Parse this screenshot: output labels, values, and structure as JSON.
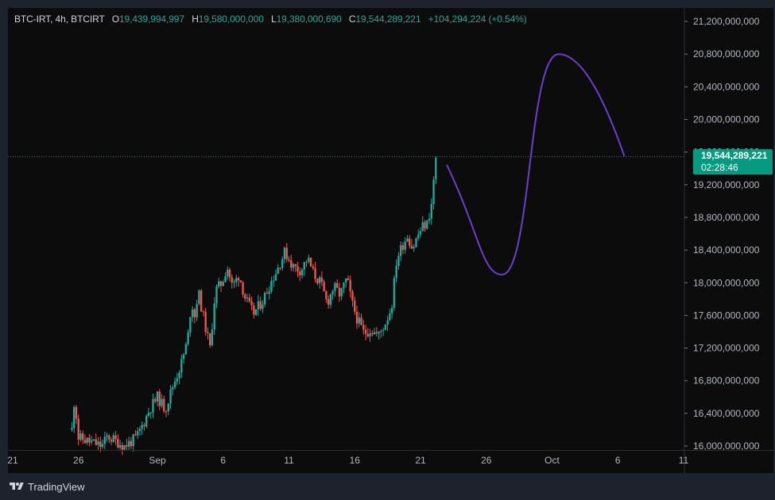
{
  "legend": {
    "symbol": "BTC-IRT, 4h, BTCIRT",
    "o_label": "O",
    "o_value": "19,439,994,997",
    "h_label": "H",
    "h_value": "19,580,000,000",
    "l_label": "L",
    "l_value": "19,380,000,690",
    "c_label": "C",
    "c_value": "19,544,289,221",
    "change": "+104,294,224 (+0.54%)"
  },
  "price_tag": {
    "price": "19,544,289,221",
    "countdown": "02:28:46"
  },
  "footer": {
    "brand": "TradingView"
  },
  "colors": {
    "up": "#26a69a",
    "down": "#ef5350",
    "projection": "#6a3fc9",
    "price_line": "#089981"
  },
  "chart_data": {
    "type": "candlestick",
    "y_ticks": [
      "21,200,000,000",
      "20,800,000,000",
      "20,400,000,000",
      "20,000,000,000",
      "19,600,000,000",
      "19,200,000,000",
      "18,800,000,000",
      "18,400,000,000",
      "18,000,000,000",
      "17,600,000,000",
      "17,200,000,000",
      "16,800,000,000",
      "16,400,000,000",
      "16,000,000,000"
    ],
    "y_tick_values": [
      21200000000.0,
      20800000000.0,
      20400000000.0,
      20000000000.0,
      19600000000.0,
      19200000000.0,
      18800000000.0,
      18400000000.0,
      18000000000.0,
      17600000000.0,
      17200000000.0,
      16800000000.0,
      16400000000.0,
      16000000000.0
    ],
    "x_ticks": [
      {
        "label": "21",
        "day": -11
      },
      {
        "label": "26",
        "day": -6
      },
      {
        "label": "Sep",
        "day": 0
      },
      {
        "label": "6",
        "day": 5
      },
      {
        "label": "11",
        "day": 10
      },
      {
        "label": "16",
        "day": 15
      },
      {
        "label": "21",
        "day": 20
      },
      {
        "label": "26",
        "day": 25
      },
      {
        "label": "Oct",
        "day": 30
      },
      {
        "label": "6",
        "day": 35
      },
      {
        "label": "11",
        "day": 40
      }
    ],
    "last_price": 19544289221,
    "close_path_m": [
      [
        -6.5,
        16.2
      ],
      [
        -6.3,
        16.6
      ],
      [
        -6.0,
        16.1
      ],
      [
        -4.2,
        16.0
      ],
      [
        -3.8,
        16.12
      ],
      [
        -2.5,
        16.0
      ],
      [
        -1.6,
        16.1
      ],
      [
        -1.0,
        16.3
      ],
      [
        -0.6,
        16.45
      ],
      [
        0.0,
        16.6
      ],
      [
        0.6,
        16.45
      ],
      [
        1.2,
        16.75
      ],
      [
        1.8,
        17.0
      ],
      [
        2.3,
        17.3
      ],
      [
        2.6,
        17.8
      ],
      [
        2.8,
        17.55
      ],
      [
        3.1,
        17.9
      ],
      [
        3.6,
        17.5
      ],
      [
        4.0,
        17.2
      ],
      [
        4.4,
        17.9
      ],
      [
        4.9,
        18.0
      ],
      [
        5.3,
        18.2
      ],
      [
        5.7,
        17.95
      ],
      [
        6.2,
        18.1
      ],
      [
        6.7,
        17.8
      ],
      [
        7.3,
        17.62
      ],
      [
        8.0,
        17.78
      ],
      [
        8.6,
        18.0
      ],
      [
        9.2,
        18.2
      ],
      [
        9.7,
        18.38
      ],
      [
        10.3,
        18.2
      ],
      [
        10.9,
        18.15
      ],
      [
        11.4,
        18.3
      ],
      [
        11.9,
        18.1
      ],
      [
        12.4,
        18.0
      ],
      [
        12.9,
        17.75
      ],
      [
        13.4,
        17.95
      ],
      [
        13.9,
        17.85
      ],
      [
        14.4,
        18.05
      ],
      [
        14.8,
        17.75
      ],
      [
        15.2,
        17.55
      ],
      [
        15.7,
        17.38
      ],
      [
        16.2,
        17.43
      ],
      [
        16.8,
        17.35
      ],
      [
        17.3,
        17.5
      ],
      [
        17.8,
        17.7
      ],
      [
        18.2,
        18.3
      ],
      [
        18.6,
        18.45
      ],
      [
        19.0,
        18.58
      ],
      [
        19.4,
        18.42
      ],
      [
        19.8,
        18.58
      ],
      [
        20.2,
        18.7
      ],
      [
        20.5,
        18.72
      ],
      [
        20.9,
        19.0
      ],
      [
        21.1,
        19.5
      ],
      [
        21.3,
        19.544
      ]
    ],
    "projection": {
      "start_day": 22.0,
      "end_day": 35.5,
      "trough_day": 26.2,
      "trough": 18.1,
      "peak_day": 30.5,
      "peak": 20.8,
      "end": 19.55
    }
  }
}
